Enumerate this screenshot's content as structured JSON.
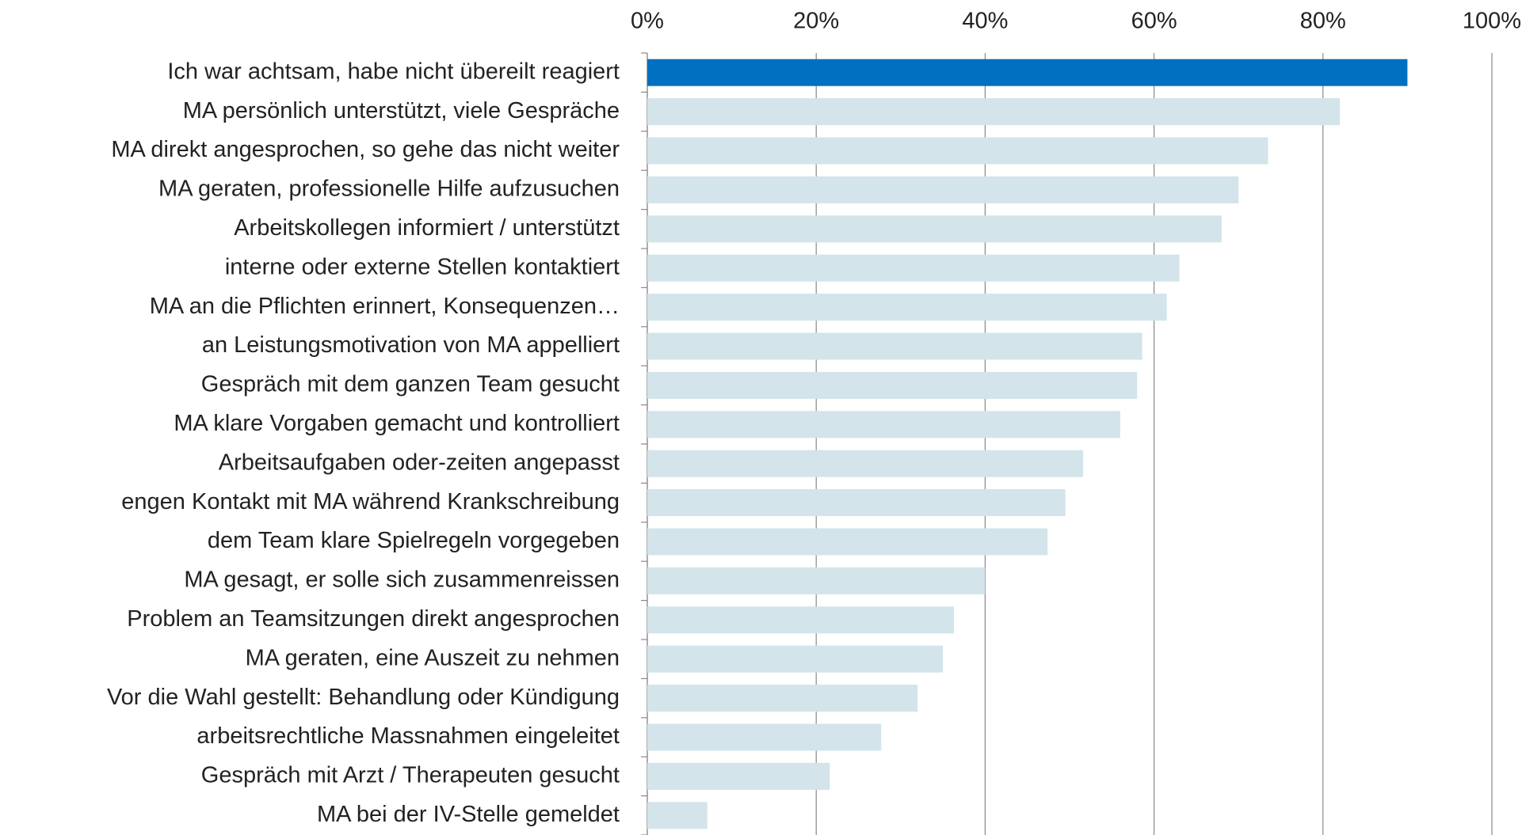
{
  "chart_data": {
    "type": "barh",
    "categories": [
      "Ich war achtsam, habe nicht übereilt reagiert",
      "MA persönlich unterstützt, viele Gespräche",
      "MA direkt angesprochen, so gehe das nicht weiter",
      "MA geraten, professionelle Hilfe aufzusuchen",
      "Arbeitskollegen informiert / unterstützt",
      "interne oder externe Stellen kontaktiert",
      "MA an die Pflichten erinnert, Konsequenzen…",
      "an Leistungsmotivation von MA appelliert",
      "Gespräch mit dem ganzen Team gesucht",
      "MA klare Vorgaben gemacht und kontrolliert",
      "Arbeitsaufgaben oder-zeiten angepasst",
      "engen Kontakt mit MA während Krankschreibung",
      "dem  Team klare Spielregeln vorgegeben",
      "MA gesagt, er solle sich zusammenreissen",
      "Problem an Teamsitzungen direkt angesprochen",
      "MA geraten, eine Auszeit zu nehmen",
      "Vor die Wahl gestellt: Behandlung oder Kündigung",
      "arbeitsrechtliche Massnahmen eingeleitet",
      "Gespräch mit Arzt / Therapeuten gesucht",
      "MA bei der IV-Stelle gemeldet"
    ],
    "values": [
      90,
      82,
      73.5,
      70,
      68,
      63,
      61.5,
      58.6,
      58,
      56,
      51.6,
      49.5,
      47.4,
      40,
      36.3,
      35,
      32,
      27.7,
      21.6,
      7.1
    ],
    "colors": [
      "#0070c0",
      "#d3e4ea",
      "#d3e4ea",
      "#d3e4ea",
      "#d3e4ea",
      "#d3e4ea",
      "#d3e4ea",
      "#d3e4ea",
      "#d3e4ea",
      "#d3e4ea",
      "#d3e4ea",
      "#d3e4ea",
      "#d3e4ea",
      "#d3e4ea",
      "#d3e4ea",
      "#d3e4ea",
      "#d3e4ea",
      "#d3e4ea",
      "#d3e4ea",
      "#d3e4ea"
    ],
    "xlim": [
      0,
      100
    ],
    "xticks": [
      {
        "value": 0,
        "label": "0%"
      },
      {
        "value": 20,
        "label": "20%"
      },
      {
        "value": 40,
        "label": "40%"
      },
      {
        "value": 60,
        "label": "60%"
      },
      {
        "value": 80,
        "label": "80%"
      },
      {
        "value": 100,
        "label": "100%"
      }
    ],
    "grid": true
  }
}
